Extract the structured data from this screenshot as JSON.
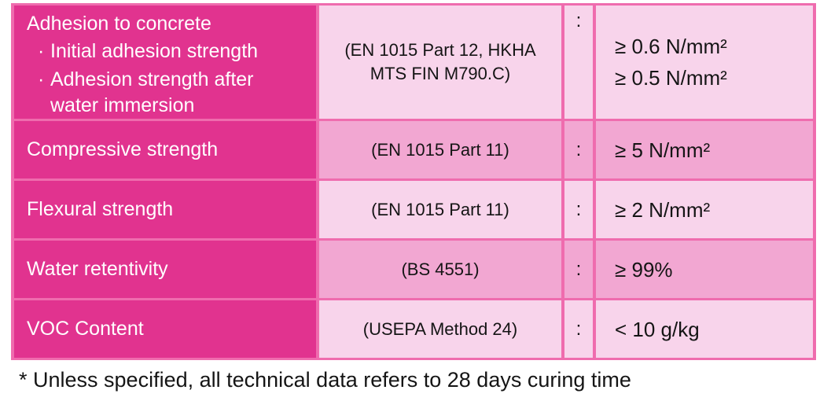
{
  "colors": {
    "magenta": "#e1338f",
    "light_pink": "#f8d4eb",
    "medium_pink": "#f2a7d2",
    "border_pink": "#ef6cae",
    "text_dark": "#151515",
    "text_white": "#ffffff"
  },
  "bullet_char": "·",
  "table": {
    "rows": [
      {
        "property": "Adhesion to concrete",
        "bullets": [
          "Initial adhesion strength",
          "Adhesion strength after water immersion"
        ],
        "standard": "(EN 1015 Part 12, HKHA MTS FIN M790.C)",
        "colon": ":",
        "values": [
          "≥ 0.6 N/mm²",
          "≥ 0.5 N/mm²"
        ]
      },
      {
        "property": "Compressive strength",
        "standard": "(EN 1015 Part 11)",
        "colon": ":",
        "values": [
          "≥ 5 N/mm²"
        ]
      },
      {
        "property": "Flexural strength",
        "standard": "(EN 1015 Part 11)",
        "colon": ":",
        "values": [
          "≥ 2 N/mm²"
        ]
      },
      {
        "property": "Water retentivity",
        "standard": "(BS 4551)",
        "colon": ":",
        "values": [
          "≥ 99%"
        ]
      },
      {
        "property": "VOC Content",
        "standard": "(USEPA Method 24)",
        "colon": ":",
        "values": [
          "< 10 g/kg"
        ]
      }
    ]
  },
  "footnote": "* Unless specified, all technical data refers to 28 days curing time"
}
